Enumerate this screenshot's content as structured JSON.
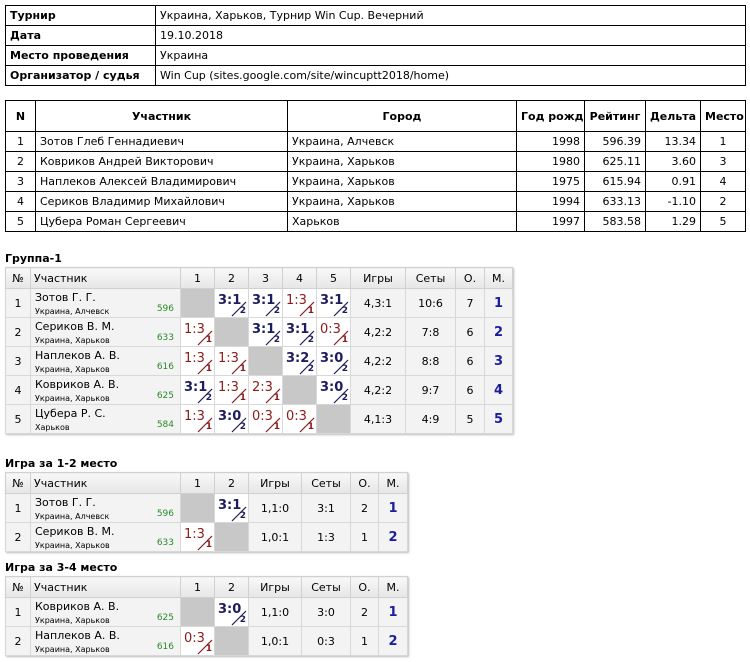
{
  "info": {
    "rows": [
      [
        "Турнир",
        "Украина, Харьков, Турнир Win Cup. Вечерний"
      ],
      [
        "Дата",
        "19.10.2018"
      ],
      [
        "Место проведения",
        "Украина"
      ],
      [
        "Организатор / судья",
        "Win Cup (sites.google.com/site/wincuptt2018/home)"
      ]
    ]
  },
  "participants": {
    "headers": [
      "N",
      "Участник",
      "Город",
      "Год рожд.",
      "Рейтинг",
      "Дельта",
      "Место"
    ],
    "rows": [
      [
        "1",
        "Зотов Глеб Геннадиевич",
        "Украина, Алчевск",
        "1998",
        "596.39",
        "13.34",
        "1"
      ],
      [
        "2",
        "Ковриков Андрей Викторович",
        "Украина, Харьков",
        "1980",
        "625.11",
        "3.60",
        "3"
      ],
      [
        "3",
        "Наплеков Алексей Владимирович",
        "Украина, Харьков",
        "1975",
        "615.94",
        "0.91",
        "4"
      ],
      [
        "4",
        "Сериков Владимир Михайлович",
        "Украина, Харьков",
        "1994",
        "633.13",
        "-1.10",
        "2"
      ],
      [
        "5",
        "Цубера Роман Сергеевич",
        "Харьков",
        "1997",
        "583.58",
        "1.29",
        "5"
      ]
    ]
  },
  "groups": [
    {
      "title": "Группа-1",
      "headers": [
        "№",
        "Участник",
        "1",
        "2",
        "3",
        "4",
        "5",
        "Игры",
        "Сеты",
        "О.",
        "М."
      ],
      "rows": [
        {
          "n": "1",
          "name": "Зотов Г. Г.",
          "city": "Украина, Алчевск",
          "rating": "596",
          "results": [
            null,
            {
              "score": "3:1",
              "pts": "2"
            },
            {
              "score": "3:1",
              "pts": "2"
            },
            {
              "score": "1:3",
              "pts": "1"
            },
            {
              "score": "3:1",
              "pts": "2"
            }
          ],
          "games": "4,3:1",
          "sets": "10:6",
          "points": "7",
          "place": "1"
        },
        {
          "n": "2",
          "name": "Сериков В. М.",
          "city": "Украина, Харьков",
          "rating": "633",
          "results": [
            {
              "score": "1:3",
              "pts": "1"
            },
            null,
            {
              "score": "3:1",
              "pts": "2"
            },
            {
              "score": "3:1",
              "pts": "2"
            },
            {
              "score": "0:3",
              "pts": "1"
            }
          ],
          "games": "4,2:2",
          "sets": "7:8",
          "points": "6",
          "place": "2"
        },
        {
          "n": "3",
          "name": "Наплеков А. В.",
          "city": "Украина, Харьков",
          "rating": "616",
          "results": [
            {
              "score": "1:3",
              "pts": "1"
            },
            {
              "score": "1:3",
              "pts": "1"
            },
            null,
            {
              "score": "3:2",
              "pts": "2"
            },
            {
              "score": "3:0",
              "pts": "2"
            }
          ],
          "games": "4,2:2",
          "sets": "8:8",
          "points": "6",
          "place": "3"
        },
        {
          "n": "4",
          "name": "Ковриков А. В.",
          "city": "Украина, Харьков",
          "rating": "625",
          "results": [
            {
              "score": "3:1",
              "pts": "2"
            },
            {
              "score": "1:3",
              "pts": "1"
            },
            {
              "score": "2:3",
              "pts": "1"
            },
            null,
            {
              "score": "3:0",
              "pts": "2"
            }
          ],
          "games": "4,2:2",
          "sets": "9:7",
          "points": "6",
          "place": "4"
        },
        {
          "n": "5",
          "name": "Цубера Р. С.",
          "city": "Харьков",
          "rating": "584",
          "results": [
            {
              "score": "1:3",
              "pts": "1"
            },
            {
              "score": "3:0",
              "pts": "2"
            },
            {
              "score": "0:3",
              "pts": "1"
            },
            {
              "score": "0:3",
              "pts": "1"
            },
            null
          ],
          "games": "4,1:3",
          "sets": "4:9",
          "points": "5",
          "place": "5"
        }
      ]
    },
    {
      "title": "Игра за 1-2 место",
      "headers": [
        "№",
        "Участник",
        "1",
        "2",
        "Игры",
        "Сеты",
        "О.",
        "М."
      ],
      "rows": [
        {
          "n": "1",
          "name": "Зотов Г. Г.",
          "city": "Украина, Алчевск",
          "rating": "596",
          "results": [
            null,
            {
              "score": "3:1",
              "pts": "2"
            }
          ],
          "games": "1,1:0",
          "sets": "3:1",
          "points": "2",
          "place": "1"
        },
        {
          "n": "2",
          "name": "Сериков В. М.",
          "city": "Украина, Харьков",
          "rating": "633",
          "results": [
            {
              "score": "1:3",
              "pts": "1"
            },
            null
          ],
          "games": "1,0:1",
          "sets": "1:3",
          "points": "1",
          "place": "2"
        }
      ]
    },
    {
      "title": "Игра за 3-4 место",
      "headers": [
        "№",
        "Участник",
        "1",
        "2",
        "Игры",
        "Сеты",
        "О.",
        "М."
      ],
      "rows": [
        {
          "n": "1",
          "name": "Ковриков А. В.",
          "city": "Украина, Харьков",
          "rating": "625",
          "results": [
            null,
            {
              "score": "3:0",
              "pts": "2"
            }
          ],
          "games": "1,1:0",
          "sets": "3:0",
          "points": "2",
          "place": "1"
        },
        {
          "n": "2",
          "name": "Наплеков А. В.",
          "city": "Украина, Харьков",
          "rating": "616",
          "results": [
            {
              "score": "0:3",
              "pts": "1"
            },
            null
          ],
          "games": "1,0:1",
          "sets": "0:3",
          "points": "1",
          "place": "2"
        }
      ]
    }
  ]
}
